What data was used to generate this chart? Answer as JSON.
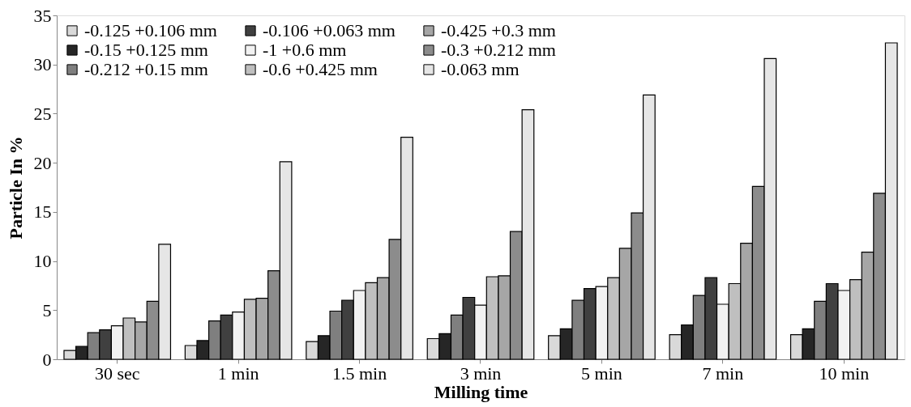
{
  "chart_data": {
    "type": "bar",
    "xlabel": "Milling time",
    "ylabel": "Particle In %",
    "categories": [
      "30 sec",
      "1 min",
      "1.5 min",
      "3 min",
      "5 min",
      "7 min",
      "10 min"
    ],
    "series": [
      {
        "name": "-0.125 +0.106 mm",
        "color": "#d9d9d9",
        "values": [
          0.9,
          1.4,
          1.8,
          2.1,
          2.4,
          2.5,
          2.5
        ]
      },
      {
        "name": "-0.15 +0.125 mm",
        "color": "#262626",
        "values": [
          1.3,
          1.9,
          2.4,
          2.6,
          3.1,
          3.5,
          3.1
        ]
      },
      {
        "name": "-0.212 +0.15 mm",
        "color": "#7f7f7f",
        "values": [
          2.7,
          3.9,
          4.9,
          4.5,
          6.0,
          6.5,
          5.9
        ]
      },
      {
        "name": "-0.106 +0.063 mm",
        "color": "#404040",
        "values": [
          3.0,
          4.5,
          6.0,
          6.3,
          7.2,
          8.3,
          7.7
        ]
      },
      {
        "name": "-1 +0.6 mm",
        "color": "#f2f2f2",
        "values": [
          3.4,
          4.8,
          7.0,
          5.5,
          7.4,
          5.6,
          7.0
        ]
      },
      {
        "name": "-0.6 +0.425 mm",
        "color": "#bfbfbf",
        "values": [
          4.2,
          6.1,
          7.8,
          8.4,
          8.3,
          7.7,
          8.1
        ]
      },
      {
        "name": "-0.425 +0.3 mm",
        "color": "#a6a6a6",
        "values": [
          3.8,
          6.2,
          8.3,
          8.5,
          11.3,
          11.8,
          10.9
        ]
      },
      {
        "name": "-0.3 +0.212 mm",
        "color": "#8c8c8c",
        "values": [
          5.9,
          9.0,
          12.2,
          13.0,
          14.9,
          17.6,
          16.9
        ]
      },
      {
        "name": "-0.063 mm",
        "color": "#e6e6e6",
        "values": [
          11.7,
          20.1,
          22.6,
          25.4,
          26.9,
          30.6,
          32.2
        ]
      }
    ],
    "ylim": [
      0,
      35
    ],
    "yticks": [
      0,
      5,
      10,
      15,
      20,
      25,
      30,
      35
    ],
    "grid": false,
    "legend": "top left"
  }
}
